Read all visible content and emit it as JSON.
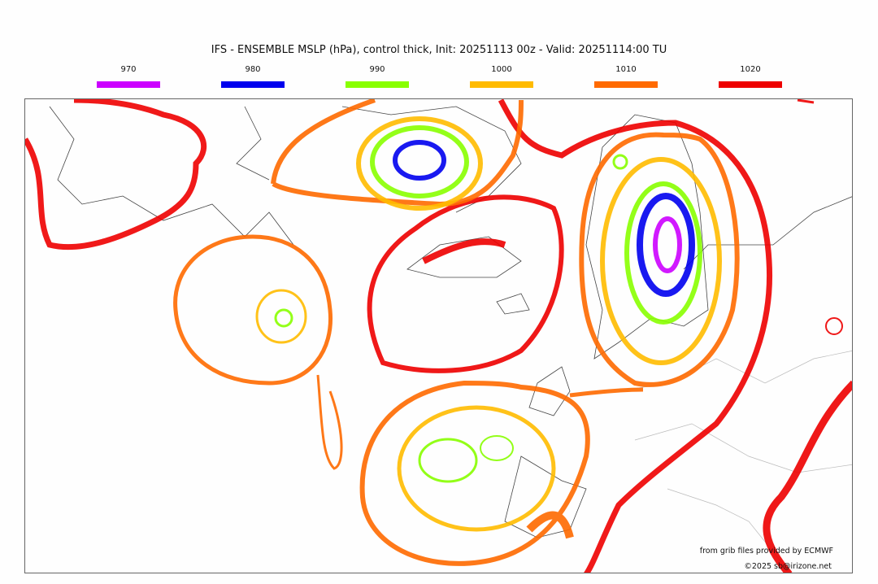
{
  "title": "IFS - ENSEMBLE MSLP (hPa), control thick, Init: 20251113 00z - Valid: 20251114:00 TU",
  "legend": [
    {
      "label": "970",
      "color": "#cc00ff"
    },
    {
      "label": "980",
      "color": "#0000ee"
    },
    {
      "label": "990",
      "color": "#88ff00"
    },
    {
      "label": "1000",
      "color": "#ffbb00"
    },
    {
      "label": "1010",
      "color": "#ff6a00"
    },
    {
      "label": "1020",
      "color": "#ee0000"
    }
  ],
  "credits": {
    "source": "from grib files provided by ECMWF",
    "copyright": "©2025 sb@irizone.net"
  }
}
